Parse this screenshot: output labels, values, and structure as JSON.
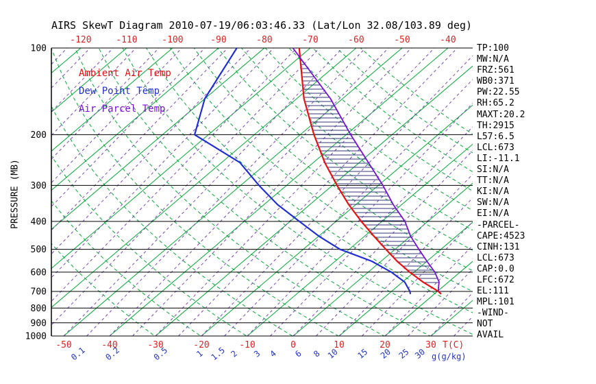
{
  "title": "AIRS SkewT Diagram 2010-07-19/06:03:46.33 (Lat/Lon 32.08/103.89 deg)",
  "stats_panel": {
    "lines": [
      "TP:100",
      "MW:N/A",
      "FRZ:561",
      "WB0:371",
      "PW:22.55",
      "RH:65.2",
      "MAXT:20.2",
      "TH:2915",
      "L57:6.5",
      "LCL:673",
      "LI:-11.1",
      "SI:N/A",
      "TT:N/A",
      "KI:N/A",
      "SW:N/A",
      "EI:N/A",
      "-PARCEL-",
      "CAPE:4523",
      "CINH:131",
      "LCL:673",
      "CAP:0.0",
      "LFC:672",
      "EL:111",
      "MPL:101",
      "-WIND-",
      "NOT",
      "AVAIL"
    ]
  },
  "chart_data": {
    "type": "skewt_log_p",
    "title": "AIRS SkewT Diagram 2010-07-19/06:03:46.33 (Lat/Lon 32.08/103.89 deg)",
    "ylabel": "PRESSURE (MB)",
    "xlabel": "T(C)",
    "x2label": "g(g/kg)",
    "pressure_ticks": [
      100,
      200,
      300,
      400,
      500,
      600,
      700,
      800,
      900,
      1000
    ],
    "pressure_range": [
      100,
      1000
    ],
    "temp_ticks_top": [
      -120,
      -110,
      -100,
      -90,
      -80,
      -70,
      -60,
      -50,
      -40
    ],
    "temp_ticks_bottom": [
      -50,
      -40,
      -30,
      -20,
      -10,
      0,
      10,
      20,
      30
    ],
    "mixing_ratio": {
      "values": [
        0.1,
        0.2,
        0.5,
        1,
        1.5,
        2,
        3,
        4,
        6,
        8,
        10,
        15,
        20,
        25,
        30
      ],
      "dewpoint_at_1000mb": [
        -46.5,
        -39,
        -28.5,
        -20,
        -16,
        -12.5,
        -7.5,
        -4,
        1.5,
        5.5,
        9,
        15.5,
        20.5,
        24.5,
        28
      ]
    },
    "background": {
      "isotherm_step_c": 10,
      "isotherm_range": [
        -120,
        40
      ],
      "dry_adiabat_theta_k": [
        243,
        253,
        263,
        273,
        283,
        293,
        303,
        313,
        323,
        333,
        343,
        353,
        363,
        373,
        383,
        393,
        403,
        413
      ],
      "purple_line_step_c": 5,
      "purple_line_range": [
        -120,
        45
      ]
    },
    "series": [
      {
        "name": "Ambient Air Temp",
        "color": "#e81010",
        "points_p_mb_t_c": [
          [
            715,
            21.5
          ],
          [
            700,
            20.2
          ],
          [
            650,
            14.5
          ],
          [
            600,
            9
          ],
          [
            550,
            3.5
          ],
          [
            500,
            -2
          ],
          [
            450,
            -8
          ],
          [
            400,
            -14.5
          ],
          [
            350,
            -21.5
          ],
          [
            300,
            -29
          ],
          [
            250,
            -37.5
          ],
          [
            200,
            -47
          ],
          [
            150,
            -58.4
          ],
          [
            100,
            -72.4
          ]
        ]
      },
      {
        "name": "Dew Point Temp",
        "color": "#1f2fd4",
        "points_p_mb_t_c": [
          [
            715,
            14.8
          ],
          [
            700,
            14
          ],
          [
            650,
            10.5
          ],
          [
            600,
            5
          ],
          [
            550,
            -2
          ],
          [
            500,
            -12
          ],
          [
            450,
            -20
          ],
          [
            400,
            -28
          ],
          [
            350,
            -37
          ],
          [
            300,
            -46
          ],
          [
            250,
            -56
          ],
          [
            200,
            -73
          ],
          [
            150,
            -80
          ],
          [
            100,
            -86
          ]
        ]
      },
      {
        "name": "Air Parcel Temp",
        "color": "#7a10d8",
        "points_p_mb_t_c": [
          [
            700,
            20.2
          ],
          [
            673,
            19
          ],
          [
            650,
            18
          ],
          [
            600,
            14.5
          ],
          [
            550,
            10
          ],
          [
            500,
            5.2
          ],
          [
            450,
            0
          ],
          [
            400,
            -5
          ],
          [
            350,
            -11.8
          ],
          [
            300,
            -19
          ],
          [
            250,
            -28
          ],
          [
            200,
            -39
          ],
          [
            150,
            -52.6
          ],
          [
            100,
            -73.8
          ]
        ]
      }
    ],
    "colors": {
      "isotherm": "#00aa33",
      "dry_adiabat": "#00aa33",
      "mixing_line": "#7744bb",
      "pressure_line": "#000000",
      "cape_hatch": "#333377",
      "tick_red": "#e02020",
      "tick_blue": "#2233cc"
    }
  }
}
